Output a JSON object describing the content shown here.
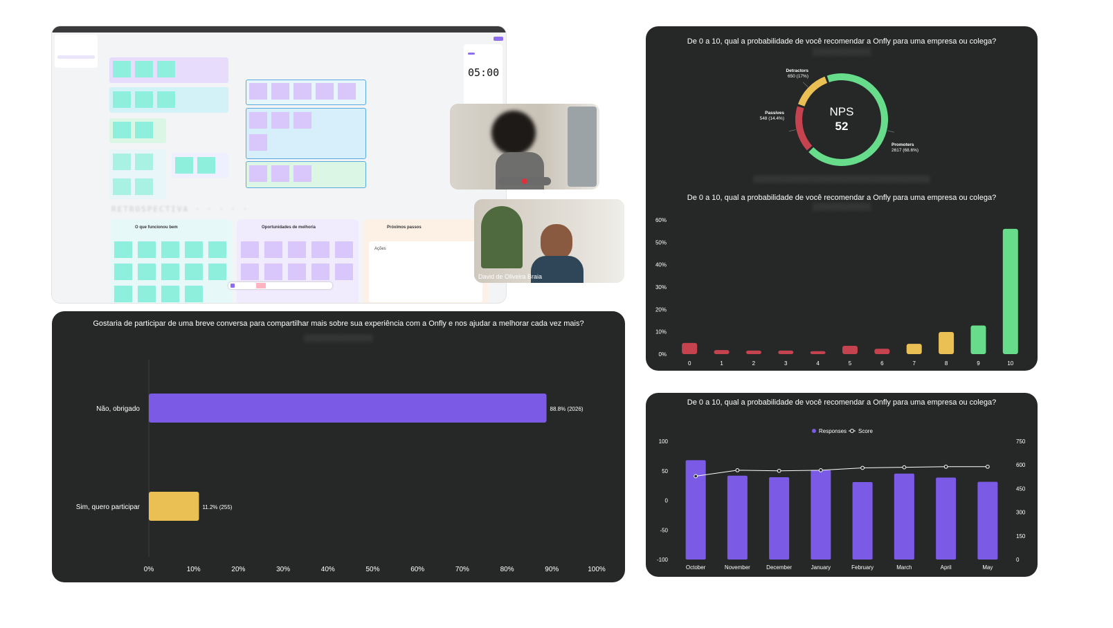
{
  "whiteboard": {
    "timer": "05:00",
    "sections": {
      "worked": "O que funcionou bem",
      "improve": "Oportunidades de melhoria",
      "next": "Próximos passos",
      "actions": "Ações"
    }
  },
  "video_call": {
    "participant_name": "David de Oliveira Braia"
  },
  "colors": {
    "card_bg": "#252827",
    "purple": "#7b5be5",
    "yellow": "#eac054",
    "green": "#67dd8c",
    "red": "#c5434f"
  },
  "chart_data": [
    {
      "type": "pie",
      "subtype": "donut",
      "title": "De 0 a 10, qual a probabilidade de você recomendar a Onfly para uma empresa ou colega?",
      "center_label": "NPS",
      "center_value": "52",
      "slices": [
        {
          "name": "Promoters",
          "value": 2617,
          "label": "2617 (68.6%)",
          "color": "#67dd8c"
        },
        {
          "name": "Detractors",
          "value": 650,
          "label": "650 (17%)",
          "color": "#c5434f"
        },
        {
          "name": "Passives",
          "value": 548,
          "label": "548 (14.4%)",
          "color": "#eac054"
        }
      ]
    },
    {
      "type": "bar",
      "title": "De 0 a 10, qual a probabilidade de você recomendar a Onfly para uma empresa ou colega?",
      "categories": [
        "0",
        "1",
        "2",
        "3",
        "4",
        "5",
        "6",
        "7",
        "8",
        "9",
        "10"
      ],
      "values": [
        5,
        1.8,
        1.6,
        1.6,
        1.3,
        3.7,
        2.4,
        4.6,
        9.9,
        12.8,
        56
      ],
      "colors": [
        "#c5434f",
        "#c5434f",
        "#c5434f",
        "#c5434f",
        "#c5434f",
        "#c5434f",
        "#c5434f",
        "#eac054",
        "#eac054",
        "#67dd8c",
        "#67dd8c"
      ],
      "ylim": [
        0,
        60
      ],
      "yticks": [
        "0%",
        "10%",
        "20%",
        "30%",
        "40%",
        "50%",
        "60%"
      ],
      "grid": false
    },
    {
      "type": "bar",
      "orientation": "horizontal",
      "title": "Gostaria de participar de uma breve conversa para compartilhar mais sobre sua experiência com a Onfly e nos ajudar a melhorar cada vez mais?",
      "categories": [
        "Não, obrigado",
        "Sim, quero participar"
      ],
      "values": [
        88.8,
        11.2
      ],
      "value_labels": [
        "88.8% (2026)",
        "11.2% (255)"
      ],
      "colors": [
        "#7b5be5",
        "#eac054"
      ],
      "xlim": [
        0,
        100
      ],
      "xticks": [
        "0%",
        "10%",
        "20%",
        "30%",
        "40%",
        "50%",
        "60%",
        "70%",
        "80%",
        "90%",
        "100%"
      ]
    },
    {
      "type": "bar",
      "title": "De 0 a 10, qual a probabilidade de você recomendar a Onfly para uma empresa ou colega?",
      "categories": [
        "October",
        "November",
        "December",
        "January",
        "February",
        "March",
        "April",
        "May"
      ],
      "series": [
        {
          "name": "Responses",
          "type": "bar",
          "axis": "right",
          "color": "#7b5be5",
          "values": [
            630,
            532,
            522,
            567,
            491,
            545,
            520,
            493
          ]
        },
        {
          "name": "Score",
          "type": "line",
          "axis": "left",
          "color": "#ffffff",
          "values": [
            41,
            51,
            50,
            51,
            55,
            56,
            57,
            57
          ]
        }
      ],
      "ylim_left": [
        -100,
        100
      ],
      "yticks_left": [
        "100",
        "50",
        "0",
        "-50",
        "-100"
      ],
      "ylim_right": [
        0,
        750
      ],
      "yticks_right": [
        "750",
        "600",
        "450",
        "300",
        "150",
        "0"
      ],
      "legend": "top-center"
    }
  ]
}
